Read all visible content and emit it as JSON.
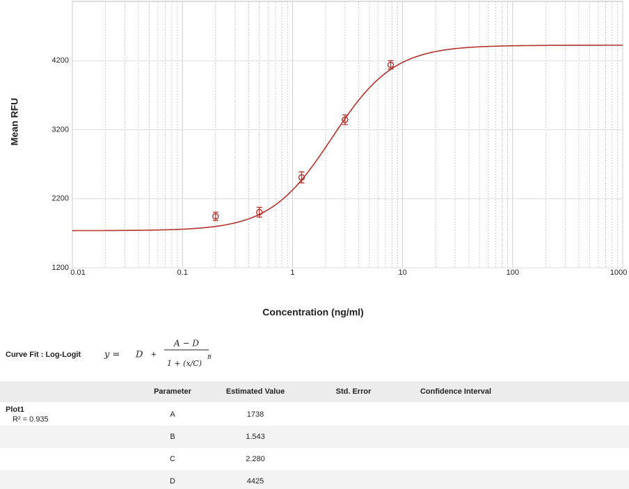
{
  "chart_data": {
    "type": "scatter",
    "x": [
      0.2,
      0.5,
      1.21,
      3.0,
      7.8
    ],
    "values": [
      1945,
      2005,
      2510,
      3345,
      4140
    ],
    "errors": [
      60,
      70,
      80,
      70,
      60
    ],
    "color": "#b5302a",
    "xlabel": "Concentration (ng/ml)",
    "ylabel": "Mean RFU",
    "xlim": [
      0.01,
      1000
    ],
    "ylim": [
      1200,
      5060
    ],
    "xticks": [
      0.01,
      0.1,
      1,
      10,
      100,
      1000
    ],
    "yticks": [
      1200,
      2200,
      3200,
      4200
    ],
    "log_x": true,
    "grid": true,
    "minor_grid": true
  },
  "formula": {
    "title": "Curve Fit : Log-Logit",
    "lhs": "y =",
    "d": "D",
    "plus": "+",
    "numerator": "A − D",
    "denominator": "1 + (x/C)",
    "exponent": "B"
  },
  "table": {
    "columns": [
      "Parameter",
      "Estimated Value",
      "Std. Error",
      "Confidence Interval"
    ],
    "plot": "Plot1",
    "fit": "R² = 0.935",
    "rows": [
      [
        "A",
        "1738"
      ],
      [
        "B",
        "1.543"
      ],
      [
        "C",
        "2.280"
      ],
      [
        "D",
        "4425"
      ]
    ]
  }
}
